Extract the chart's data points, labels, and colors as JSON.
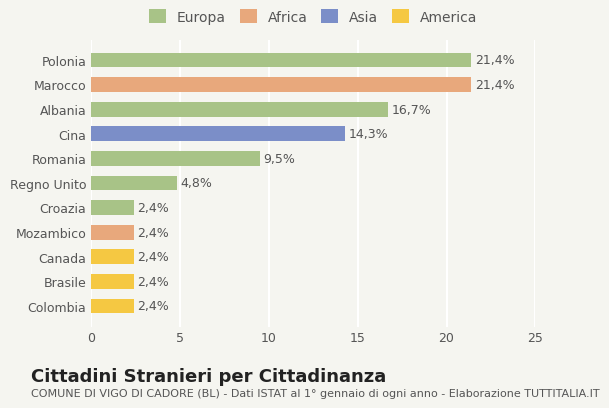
{
  "categories": [
    "Polonia",
    "Marocco",
    "Albania",
    "Cina",
    "Romania",
    "Regno Unito",
    "Croazia",
    "Mozambico",
    "Canada",
    "Brasile",
    "Colombia"
  ],
  "values": [
    21.4,
    21.4,
    16.7,
    14.3,
    9.5,
    4.8,
    2.4,
    2.4,
    2.4,
    2.4,
    2.4
  ],
  "labels": [
    "21,4%",
    "21,4%",
    "16,7%",
    "14,3%",
    "9,5%",
    "4,8%",
    "2,4%",
    "2,4%",
    "2,4%",
    "2,4%",
    "2,4%"
  ],
  "continents": [
    "Europa",
    "Africa",
    "Europa",
    "Asia",
    "Europa",
    "Europa",
    "Europa",
    "Africa",
    "America",
    "America",
    "America"
  ],
  "colors": {
    "Europa": "#a8c387",
    "Africa": "#e8a87c",
    "Asia": "#7b8ec8",
    "America": "#f5c842"
  },
  "legend_colors": {
    "Europa": "#a8c387",
    "Africa": "#e8a87c",
    "Asia": "#7b8ec8",
    "America": "#f5c842"
  },
  "legend_order": [
    "Europa",
    "Africa",
    "Asia",
    "America"
  ],
  "xlim": [
    0,
    25
  ],
  "xticks": [
    0,
    5,
    10,
    15,
    20,
    25
  ],
  "title": "Cittadini Stranieri per Cittadinanza",
  "subtitle": "COMUNE DI VIGO DI CADORE (BL) - Dati ISTAT al 1° gennaio di ogni anno - Elaborazione TUTTITALIA.IT",
  "background_color": "#f5f5f0",
  "bar_edge_color": "none",
  "grid_color": "#ffffff",
  "title_fontsize": 13,
  "subtitle_fontsize": 8,
  "label_fontsize": 9,
  "tick_fontsize": 9,
  "legend_fontsize": 10
}
